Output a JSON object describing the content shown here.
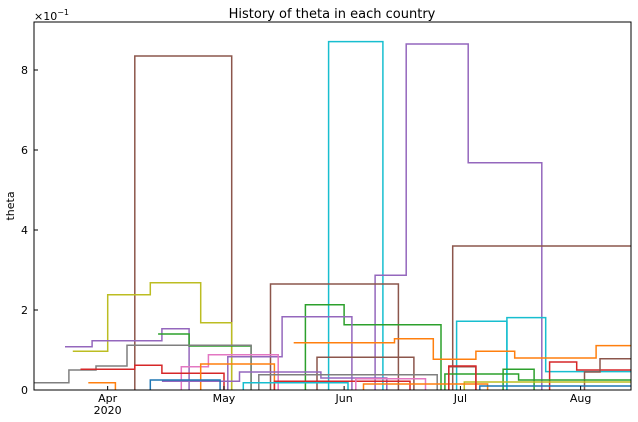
{
  "chart_data": {
    "type": "line",
    "title": "History of theta in each country",
    "xlabel": "",
    "ylabel": "theta",
    "y_scale_label": "×10",
    "y_scale_exponent": "−1",
    "xlim": [
      "2020-03-13",
      "2020-08-14"
    ],
    "ylim": [
      0,
      0.92
    ],
    "grid": false,
    "x_ticks": [
      {
        "date": "2020-04-01",
        "label": "Apr",
        "sublabel": "2020"
      },
      {
        "date": "2020-05-01",
        "label": "May",
        "sublabel": ""
      },
      {
        "date": "2020-06-01",
        "label": "Jun",
        "sublabel": ""
      },
      {
        "date": "2020-07-01",
        "label": "Jul",
        "sublabel": ""
      },
      {
        "date": "2020-08-01",
        "label": "Aug",
        "sublabel": ""
      }
    ],
    "y_ticks": [
      {
        "value": 0.0,
        "label": "0"
      },
      {
        "value": 0.2,
        "label": "2"
      },
      {
        "value": 0.4,
        "label": "4"
      },
      {
        "value": 0.6,
        "label": "6"
      },
      {
        "value": 0.8,
        "label": "8"
      }
    ],
    "series": [
      {
        "color": "#8c564b",
        "points": [
          [
            "2020-04-08",
            0.0
          ],
          [
            "2020-04-08",
            0.835
          ],
          [
            "2020-05-03",
            0.835
          ],
          [
            "2020-05-03",
            0.0
          ]
        ]
      },
      {
        "color": "#17becf",
        "points": [
          [
            "2020-05-28",
            0.0
          ],
          [
            "2020-05-28",
            0.871
          ],
          [
            "2020-06-11",
            0.871
          ],
          [
            "2020-06-11",
            0.0
          ]
        ]
      },
      {
        "color": "#9467bd",
        "points": [
          [
            "2020-06-09",
            0.0
          ],
          [
            "2020-06-09",
            0.287
          ],
          [
            "2020-06-17",
            0.287
          ],
          [
            "2020-06-17",
            0.865
          ],
          [
            "2020-07-03",
            0.865
          ],
          [
            "2020-07-03",
            0.568
          ],
          [
            "2020-07-22",
            0.568
          ],
          [
            "2020-07-22",
            0.0
          ]
        ]
      },
      {
        "color": "#8c564b",
        "points": [
          [
            "2020-06-29",
            0.0
          ],
          [
            "2020-06-29",
            0.36
          ],
          [
            "2020-08-14",
            0.36
          ]
        ]
      },
      {
        "color": "#8c564b",
        "points": [
          [
            "2020-05-13",
            0.0
          ],
          [
            "2020-05-13",
            0.265
          ],
          [
            "2020-06-15",
            0.265
          ],
          [
            "2020-06-15",
            0.0
          ]
        ]
      },
      {
        "color": "#bcbd22",
        "points": [
          [
            "2020-03-23",
            0.097
          ],
          [
            "2020-04-01",
            0.097
          ],
          [
            "2020-04-01",
            0.238
          ],
          [
            "2020-04-12",
            0.238
          ],
          [
            "2020-04-12",
            0.268
          ],
          [
            "2020-04-25",
            0.268
          ],
          [
            "2020-04-25",
            0.168
          ],
          [
            "2020-05-03",
            0.168
          ],
          [
            "2020-05-03",
            0.0
          ]
        ]
      },
      {
        "color": "#2ca02c",
        "points": [
          [
            "2020-05-22",
            0.0
          ],
          [
            "2020-05-22",
            0.213
          ],
          [
            "2020-06-01",
            0.213
          ],
          [
            "2020-06-01",
            0.163
          ],
          [
            "2020-06-26",
            0.163
          ],
          [
            "2020-06-26",
            0.0
          ]
        ]
      },
      {
        "color": "#9467bd",
        "points": [
          [
            "2020-03-21",
            0.108
          ],
          [
            "2020-03-28",
            0.108
          ],
          [
            "2020-03-28",
            0.123
          ],
          [
            "2020-04-15",
            0.123
          ],
          [
            "2020-04-15",
            0.153
          ],
          [
            "2020-04-22",
            0.153
          ],
          [
            "2020-04-22",
            0.0
          ]
        ]
      },
      {
        "color": "#9467bd",
        "points": [
          [
            "2020-05-02",
            0.0
          ],
          [
            "2020-05-02",
            0.083
          ],
          [
            "2020-05-16",
            0.083
          ],
          [
            "2020-05-16",
            0.183
          ],
          [
            "2020-06-03",
            0.183
          ],
          [
            "2020-06-03",
            0.0
          ]
        ]
      },
      {
        "color": "#17becf",
        "points": [
          [
            "2020-06-30",
            0.0
          ],
          [
            "2020-06-30",
            0.172
          ],
          [
            "2020-07-13",
            0.172
          ],
          [
            "2020-07-13",
            0.0
          ]
        ]
      },
      {
        "color": "#17becf",
        "points": [
          [
            "2020-07-13",
            0.0
          ],
          [
            "2020-07-13",
            0.181
          ],
          [
            "2020-07-23",
            0.181
          ],
          [
            "2020-07-23",
            0.046
          ],
          [
            "2020-08-14",
            0.046
          ]
        ]
      },
      {
        "color": "#ff7f0e",
        "points": [
          [
            "2020-05-19",
            0.118
          ],
          [
            "2020-06-14",
            0.118
          ],
          [
            "2020-06-14",
            0.128
          ],
          [
            "2020-06-24",
            0.128
          ],
          [
            "2020-06-24",
            0.077
          ],
          [
            "2020-07-05",
            0.077
          ],
          [
            "2020-07-05",
            0.097
          ],
          [
            "2020-07-15",
            0.097
          ],
          [
            "2020-07-15",
            0.08
          ],
          [
            "2020-08-05",
            0.08
          ],
          [
            "2020-08-05",
            0.111
          ],
          [
            "2020-08-14",
            0.111
          ]
        ]
      },
      {
        "color": "#2ca02c",
        "points": [
          [
            "2020-04-14",
            0.14
          ],
          [
            "2020-04-22",
            0.14
          ],
          [
            "2020-04-22",
            0.11
          ],
          [
            "2020-05-08",
            0.11
          ],
          [
            "2020-05-08",
            0.0
          ]
        ]
      },
      {
        "color": "#7f7f7f",
        "points": [
          [
            "2020-03-13",
            0.018
          ],
          [
            "2020-03-22",
            0.018
          ],
          [
            "2020-03-22",
            0.05
          ],
          [
            "2020-03-29",
            0.05
          ],
          [
            "2020-03-29",
            0.06
          ],
          [
            "2020-04-06",
            0.06
          ],
          [
            "2020-04-06",
            0.112
          ],
          [
            "2020-05-08",
            0.112
          ],
          [
            "2020-05-08",
            0.0
          ]
        ]
      },
      {
        "color": "#e377c2",
        "points": [
          [
            "2020-04-20",
            0.0
          ],
          [
            "2020-04-20",
            0.058
          ],
          [
            "2020-04-27",
            0.058
          ],
          [
            "2020-04-27",
            0.088
          ],
          [
            "2020-05-15",
            0.088
          ],
          [
            "2020-05-15",
            0.0
          ]
        ]
      },
      {
        "color": "#d62728",
        "points": [
          [
            "2020-03-25",
            0.052
          ],
          [
            "2020-04-08",
            0.052
          ],
          [
            "2020-04-08",
            0.062
          ],
          [
            "2020-04-15",
            0.062
          ],
          [
            "2020-04-15",
            0.042
          ],
          [
            "2020-05-01",
            0.042
          ],
          [
            "2020-05-01",
            0.0
          ]
        ]
      },
      {
        "color": "#d62728",
        "points": [
          [
            "2020-07-24",
            0.0
          ],
          [
            "2020-07-24",
            0.07
          ],
          [
            "2020-07-31",
            0.07
          ],
          [
            "2020-07-31",
            0.05
          ],
          [
            "2020-08-14",
            0.05
          ]
        ]
      },
      {
        "color": "#8c564b",
        "points": [
          [
            "2020-05-25",
            0.0
          ],
          [
            "2020-05-25",
            0.082
          ],
          [
            "2020-06-19",
            0.082
          ],
          [
            "2020-06-19",
            0.0
          ]
        ]
      },
      {
        "color": "#8c564b",
        "points": [
          [
            "2020-06-28",
            0.0
          ],
          [
            "2020-06-28",
            0.058
          ],
          [
            "2020-07-05",
            0.058
          ],
          [
            "2020-07-05",
            0.0
          ]
        ]
      },
      {
        "color": "#8c564b",
        "points": [
          [
            "2020-08-02",
            0.0
          ],
          [
            "2020-08-02",
            0.045
          ],
          [
            "2020-08-06",
            0.045
          ],
          [
            "2020-08-06",
            0.078
          ],
          [
            "2020-08-14",
            0.078
          ]
        ]
      },
      {
        "color": "#ff7f0e",
        "points": [
          [
            "2020-03-27",
            0.018
          ],
          [
            "2020-04-03",
            0.018
          ],
          [
            "2020-04-03",
            0.0
          ]
        ]
      },
      {
        "color": "#ff7f0e",
        "points": [
          [
            "2020-04-25",
            0.0
          ],
          [
            "2020-04-25",
            0.065
          ],
          [
            "2020-05-14",
            0.065
          ],
          [
            "2020-05-14",
            0.0
          ]
        ]
      },
      {
        "color": "#2ca02c",
        "points": [
          [
            "2020-06-27",
            0.0
          ],
          [
            "2020-06-27",
            0.04
          ],
          [
            "2020-07-16",
            0.04
          ],
          [
            "2020-07-16",
            0.025
          ],
          [
            "2020-08-14",
            0.025
          ]
        ]
      },
      {
        "color": "#2ca02c",
        "points": [
          [
            "2020-07-12",
            0.0
          ],
          [
            "2020-07-12",
            0.052
          ],
          [
            "2020-07-20",
            0.052
          ],
          [
            "2020-07-20",
            0.0
          ]
        ]
      },
      {
        "color": "#9467bd",
        "points": [
          [
            "2020-04-15",
            0.022
          ],
          [
            "2020-05-05",
            0.022
          ],
          [
            "2020-05-05",
            0.045
          ],
          [
            "2020-05-26",
            0.045
          ],
          [
            "2020-05-26",
            0.03
          ],
          [
            "2020-06-12",
            0.03
          ],
          [
            "2020-06-12",
            0.0
          ]
        ]
      },
      {
        "color": "#7f7f7f",
        "points": [
          [
            "2020-05-10",
            0.0
          ],
          [
            "2020-05-10",
            0.038
          ],
          [
            "2020-06-25",
            0.038
          ],
          [
            "2020-06-25",
            0.0
          ]
        ]
      },
      {
        "color": "#d62728",
        "points": [
          [
            "2020-05-14",
            0.0
          ],
          [
            "2020-05-14",
            0.022
          ],
          [
            "2020-06-18",
            0.022
          ],
          [
            "2020-06-18",
            0.0
          ]
        ]
      },
      {
        "color": "#e377c2",
        "points": [
          [
            "2020-06-04",
            0.0
          ],
          [
            "2020-06-04",
            0.028
          ],
          [
            "2020-06-22",
            0.028
          ],
          [
            "2020-06-22",
            0.0
          ]
        ]
      },
      {
        "color": "#1f77b4",
        "points": [
          [
            "2020-04-12",
            0.0
          ],
          [
            "2020-04-12",
            0.025
          ],
          [
            "2020-04-30",
            0.025
          ],
          [
            "2020-04-30",
            0.0
          ]
        ]
      },
      {
        "color": "#17becf",
        "points": [
          [
            "2020-05-06",
            0.0
          ],
          [
            "2020-05-06",
            0.018
          ],
          [
            "2020-06-02",
            0.018
          ],
          [
            "2020-06-02",
            0.0
          ]
        ]
      },
      {
        "color": "#bcbd22",
        "points": [
          [
            "2020-07-02",
            0.0
          ],
          [
            "2020-07-02",
            0.02
          ],
          [
            "2020-08-14",
            0.02
          ]
        ]
      },
      {
        "color": "#ff7f0e",
        "points": [
          [
            "2020-06-06",
            0.0
          ],
          [
            "2020-06-06",
            0.015
          ],
          [
            "2020-07-08",
            0.015
          ],
          [
            "2020-07-08",
            0.0
          ]
        ]
      },
      {
        "color": "#1f77b4",
        "points": [
          [
            "2020-07-06",
            0.0
          ],
          [
            "2020-07-06",
            0.01
          ],
          [
            "2020-08-14",
            0.01
          ]
        ]
      },
      {
        "color": "#d62728",
        "points": [
          [
            "2020-06-28",
            0.0
          ],
          [
            "2020-06-28",
            0.06
          ],
          [
            "2020-07-05",
            0.06
          ],
          [
            "2020-07-05",
            0.0
          ]
        ]
      }
    ]
  }
}
